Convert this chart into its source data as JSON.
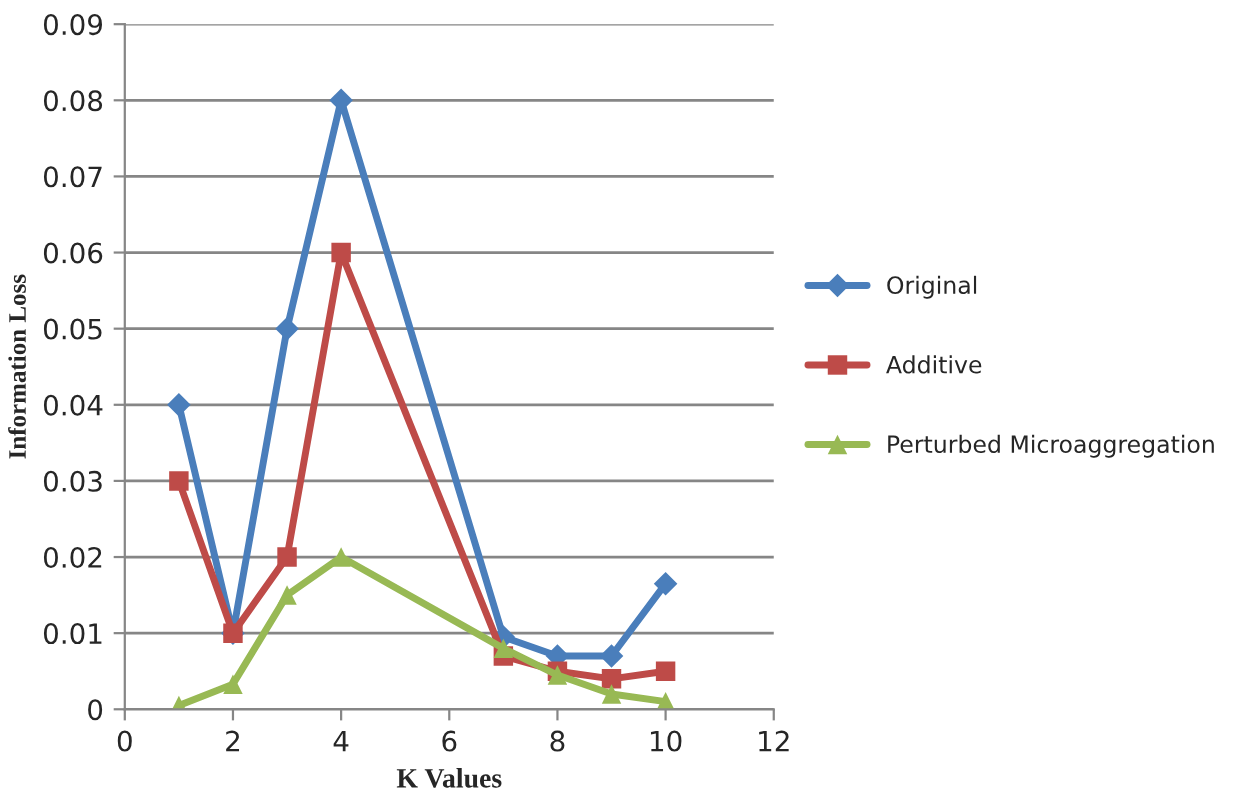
{
  "chart_data": {
    "type": "line",
    "xlabel": "K Values",
    "ylabel": "Information Loss",
    "x": [
      1,
      2,
      3,
      4,
      7,
      8,
      9,
      10
    ],
    "series": [
      {
        "name": "Original",
        "color": "#4a7ebb",
        "marker": "diamond",
        "values": [
          0.04,
          0.01,
          0.05,
          0.08,
          0.0095,
          0.007,
          0.007,
          0.0165
        ]
      },
      {
        "name": "Additive",
        "color": "#be4b48",
        "marker": "square",
        "values": [
          0.03,
          0.01,
          0.02,
          0.06,
          0.007,
          0.005,
          0.004,
          0.005
        ]
      },
      {
        "name": "Perturbed Microaggregation",
        "color": "#98b954",
        "marker": "triangle",
        "values": [
          0.0005,
          0.0033,
          0.015,
          0.02,
          0.008,
          0.0045,
          0.002,
          0.001
        ]
      }
    ],
    "xlim": [
      0,
      12
    ],
    "xticks": [
      0,
      2,
      4,
      6,
      8,
      10,
      12
    ],
    "ylim": [
      0,
      0.09
    ],
    "yticks": [
      {
        "value": 0,
        "label": "0"
      },
      {
        "value": 0.01,
        "label": "0.01"
      },
      {
        "value": 0.02,
        "label": "0.02"
      },
      {
        "value": 0.03,
        "label": "0.03"
      },
      {
        "value": 0.04,
        "label": "0.04"
      },
      {
        "value": 0.05,
        "label": "0.05"
      },
      {
        "value": 0.06,
        "label": "0.06"
      },
      {
        "value": 0.07,
        "label": "0.07"
      },
      {
        "value": 0.08,
        "label": "0.08"
      },
      {
        "value": 0.09,
        "label": "0.09"
      }
    ],
    "grid": "y",
    "legend": "right",
    "line_style": "solid"
  }
}
